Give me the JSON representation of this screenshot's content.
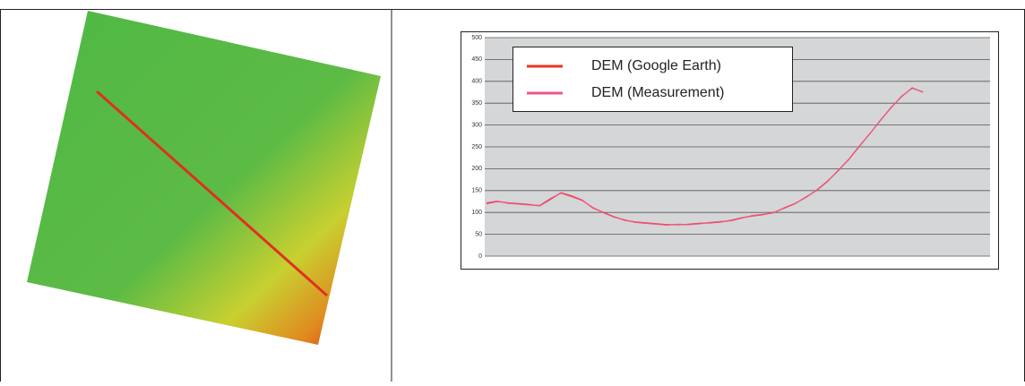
{
  "chart_data": {
    "type": "line",
    "categories": [
      null,
      null,
      null,
      null,
      null,
      null,
      null,
      null,
      null,
      null,
      null,
      null,
      null,
      null,
      null,
      null,
      null,
      null,
      null,
      null,
      null,
      null,
      null,
      null,
      null,
      null,
      null,
      null,
      null,
      null,
      null,
      null,
      null,
      null,
      null,
      null,
      null,
      null,
      null,
      null,
      null,
      null
    ],
    "series": [
      {
        "name": "DEM (Google Earth)",
        "color": "#ee3322",
        "values": [
          120,
          125,
          122,
          120,
          118,
          115,
          130,
          145,
          138,
          128,
          110,
          100,
          90,
          82,
          78,
          76,
          74,
          72,
          72,
          73,
          75,
          76,
          78,
          82,
          88,
          92,
          95,
          100,
          110,
          120,
          135,
          150,
          170,
          195,
          220,
          250,
          280,
          310,
          340,
          365,
          385,
          375
        ]
      },
      {
        "name": "DEM (Measurement)",
        "color": "#ee5588",
        "values": [
          122,
          126,
          121,
          119,
          117,
          116,
          132,
          144,
          136,
          127,
          111,
          99,
          89,
          83,
          77,
          75,
          73,
          71,
          73,
          72,
          74,
          77,
          79,
          81,
          87,
          93,
          96,
          99,
          111,
          121,
          134,
          151,
          171,
          194,
          221,
          251,
          279,
          311,
          339,
          366,
          384,
          376
        ]
      }
    ],
    "ylim": [
      0,
      500
    ],
    "yticks": [
      0,
      50,
      100,
      150,
      200,
      250,
      300,
      350,
      400,
      450,
      500
    ],
    "grid": true
  }
}
